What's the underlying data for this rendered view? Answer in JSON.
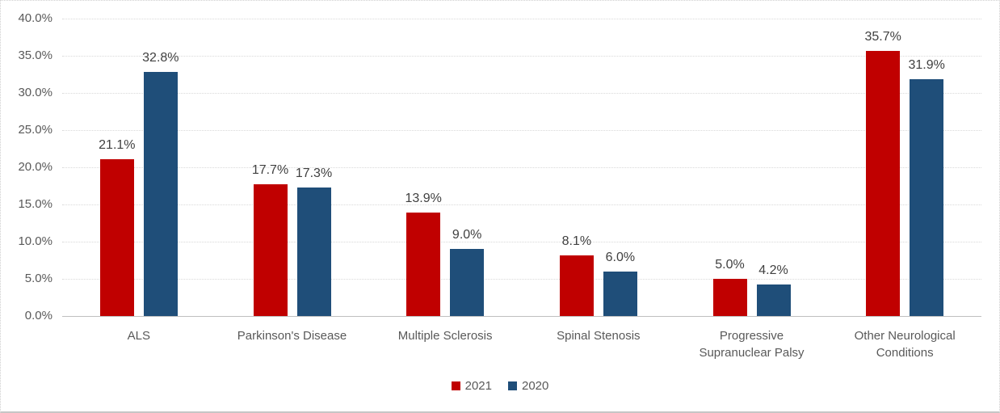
{
  "chart_data": {
    "type": "bar",
    "title": "",
    "categories": [
      "ALS",
      "Parkinson's Disease",
      "Multiple Sclerosis",
      "Spinal Stenosis",
      "Progressive Supranuclear Palsy",
      "Other Neurological Conditions"
    ],
    "series": [
      {
        "name": "2021",
        "color": "#C00000",
        "values": [
          21.1,
          17.7,
          13.9,
          8.1,
          5.0,
          35.7
        ],
        "labels": [
          "21.1%",
          "17.7%",
          "13.9%",
          "8.1%",
          "5.0%",
          "35.7%"
        ]
      },
      {
        "name": "2020",
        "color": "#1F4E79",
        "values": [
          32.8,
          17.3,
          9.0,
          6.0,
          4.2,
          31.9
        ],
        "labels": [
          "32.8%",
          "17.3%",
          "9.0%",
          "6.0%",
          "4.2%",
          "31.9%"
        ]
      }
    ],
    "ylim": [
      0,
      40
    ],
    "yticks": {
      "values": [
        0,
        5,
        10,
        15,
        20,
        25,
        30,
        35,
        40
      ],
      "labels": [
        "0.0%",
        "5.0%",
        "10.0%",
        "15.0%",
        "20.0%",
        "25.0%",
        "30.0%",
        "35.0%",
        "40.0%"
      ]
    },
    "grid": true,
    "legend_position": "bottom",
    "colors": {
      "grid": "#D9D9D9",
      "axis": "#BFBFBF",
      "tick_label": "#595959",
      "data_label": "#404040",
      "border": "#CFCFCF"
    }
  }
}
